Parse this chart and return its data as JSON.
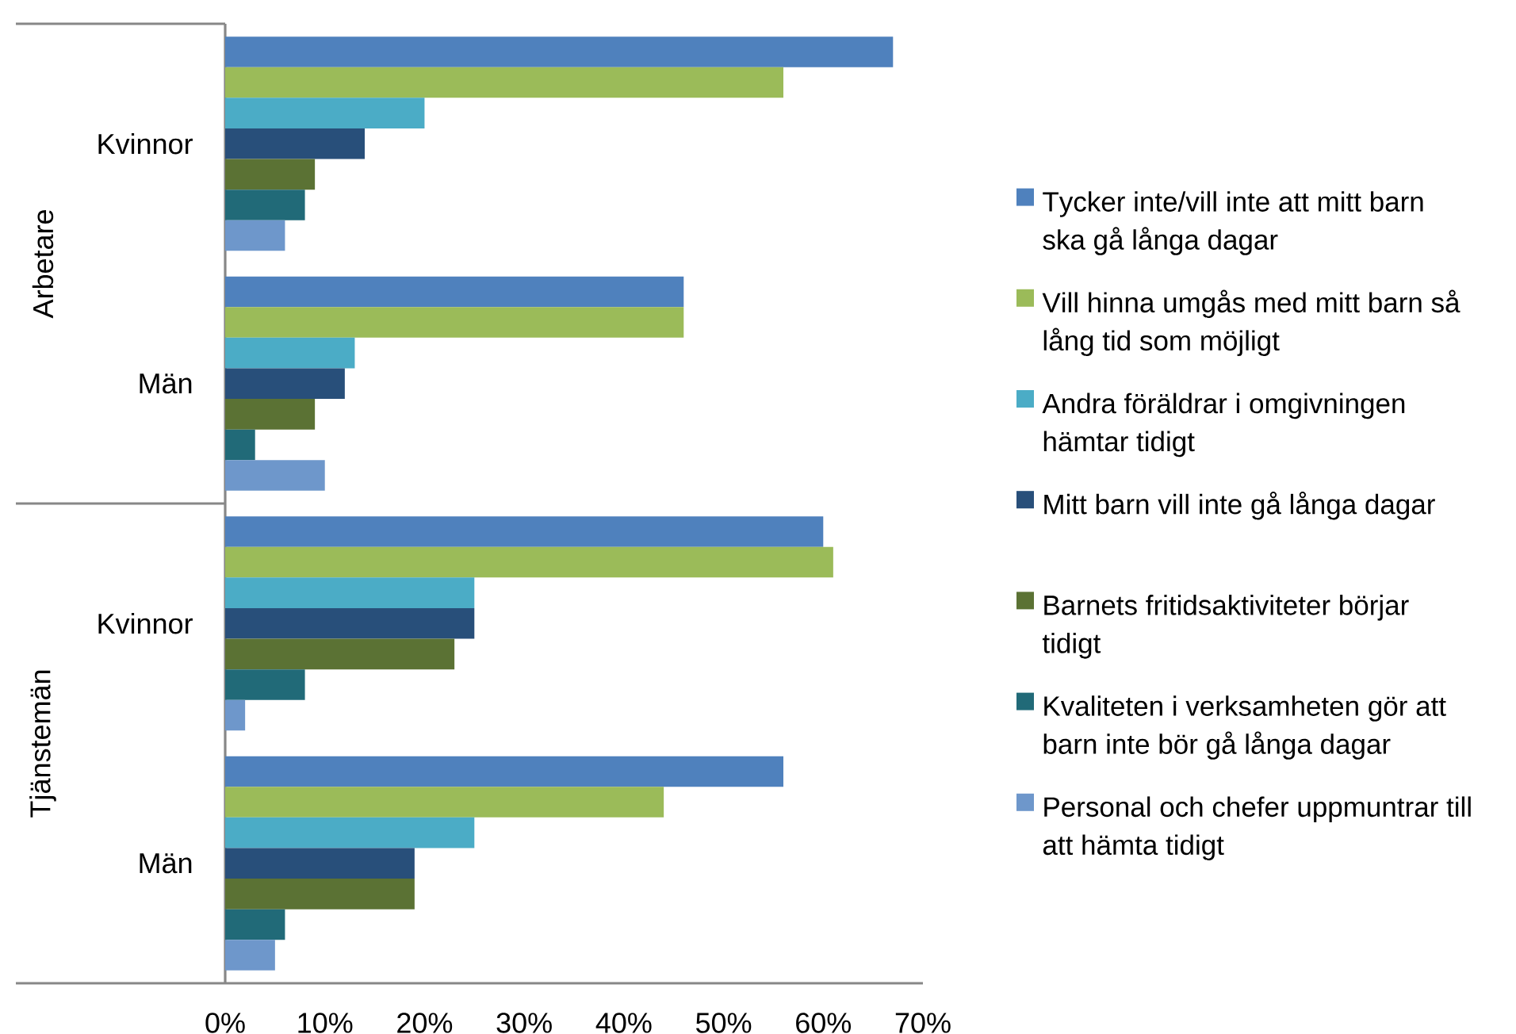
{
  "chart_data": {
    "type": "bar",
    "orientation": "horizontal",
    "categories": [
      "Kvinnor",
      "Män",
      "Kvinnor",
      "Män"
    ],
    "annotations": [
      "Arbetare",
      "Tjänstemän"
    ],
    "xlim": [
      0,
      70
    ],
    "xticks": [
      {
        "value": 0,
        "label": "0%"
      },
      {
        "value": 10,
        "label": "10%"
      },
      {
        "value": 20,
        "label": "20%"
      },
      {
        "value": 30,
        "label": "30%"
      },
      {
        "value": 40,
        "label": "40%"
      },
      {
        "value": 50,
        "label": "50%"
      },
      {
        "value": 60,
        "label": "60%"
      },
      {
        "value": 70,
        "label": "70%"
      }
    ],
    "legend": "right",
    "series": [
      {
        "name": "Tycker inte/vill inte att mitt barn ska gå långa dagar",
        "color": "#4f81bd",
        "values": [
          67,
          46,
          60,
          56
        ]
      },
      {
        "name": "Vill hinna umgås med mitt barn så lång tid som möjligt",
        "color": "#9bbb59",
        "values": [
          56,
          46,
          61,
          44
        ]
      },
      {
        "name": "Andra föräldrar i omgivningen hämtar tidigt",
        "color": "#4bacc6",
        "values": [
          20,
          13,
          25,
          25
        ]
      },
      {
        "name": "Mitt barn vill inte gå långa dagar",
        "color": "#284f7a",
        "values": [
          14,
          12,
          25,
          19
        ]
      },
      {
        "name": "Barnets fritidsaktiviteter börjar tidigt",
        "color": "#5b7234",
        "values": [
          9,
          9,
          23,
          19
        ]
      },
      {
        "name": "Kvaliteten i verksamheten gör att barn inte bör gå långa dagar",
        "color": "#216a78",
        "values": [
          8,
          3,
          8,
          6
        ]
      },
      {
        "name": "Personal och chefer uppmuntrar till att hämta tidigt",
        "color": "#6e97cb",
        "values": [
          6,
          10,
          2,
          5
        ]
      }
    ]
  }
}
